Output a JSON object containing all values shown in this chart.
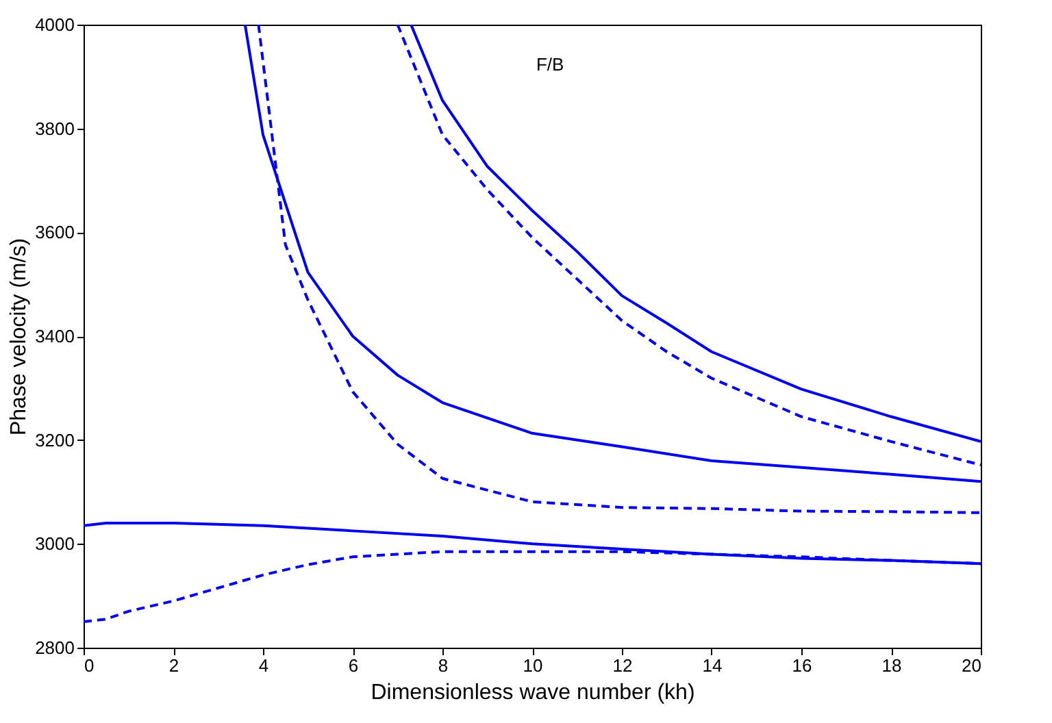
{
  "chart_data": {
    "type": "line",
    "xlabel": "Dimensionless wave number (kh)",
    "ylabel": "Phase velocity (m/s)",
    "xlim": [
      0,
      20
    ],
    "ylim": [
      2800,
      4000
    ],
    "xticks": [
      0,
      2,
      4,
      6,
      8,
      10,
      12,
      14,
      16,
      18,
      20
    ],
    "yticks": [
      2800,
      3000,
      3200,
      3400,
      3600,
      3800,
      4000
    ],
    "grid": false,
    "annotations": [
      "F/B"
    ],
    "series": [
      {
        "color": "#0000ee",
        "line_style": "solid",
        "x": [
          0,
          0.5,
          1,
          2,
          4,
          6,
          8,
          10,
          12,
          14,
          16,
          18,
          20
        ],
        "values": [
          3035,
          3040,
          3040,
          3040,
          3035,
          3025,
          3015,
          3000,
          2990,
          2980,
          2972,
          2968,
          2962
        ]
      },
      {
        "color": "#0000ee",
        "line_style": "dashed",
        "x": [
          0,
          0.5,
          1,
          2,
          3,
          4,
          5,
          6,
          7,
          8,
          10,
          12,
          14,
          16,
          18,
          20
        ],
        "values": [
          2850,
          2855,
          2870,
          2890,
          2915,
          2940,
          2960,
          2975,
          2980,
          2985,
          2985,
          2985,
          2980,
          2975,
          2968,
          2962
        ]
      },
      {
        "color": "#0000ee",
        "line_style": "solid",
        "x": [
          3.6,
          4,
          5,
          6,
          7,
          8,
          10,
          12,
          14,
          16,
          18,
          20
        ],
        "values": [
          4000,
          3788,
          3523,
          3400,
          3325,
          3272,
          3213,
          3187,
          3160,
          3147,
          3134,
          3120
        ]
      },
      {
        "color": "#0000ee",
        "line_style": "dashed",
        "x": [
          3.9,
          4.5,
          5,
          6,
          7,
          8,
          10,
          12,
          14,
          16,
          18,
          20
        ],
        "values": [
          4000,
          3576,
          3470,
          3293,
          3192,
          3126,
          3081,
          3070,
          3068,
          3063,
          3062,
          3060
        ]
      },
      {
        "color": "#0000ee",
        "line_style": "solid",
        "x": [
          7.3,
          8,
          9,
          10,
          11,
          12,
          13,
          14,
          16,
          18,
          20
        ],
        "values": [
          4000,
          3854,
          3727,
          3642,
          3563,
          3478,
          3425,
          3370,
          3298,
          3245,
          3197
        ]
      },
      {
        "color": "#0000ee",
        "line_style": "dashed",
        "x": [
          7.0,
          8,
          9,
          10,
          11,
          12,
          13,
          14,
          16,
          18,
          20
        ],
        "values": [
          4000,
          3788,
          3682,
          3590,
          3510,
          3430,
          3370,
          3319,
          3245,
          3197,
          3152
        ]
      }
    ]
  }
}
